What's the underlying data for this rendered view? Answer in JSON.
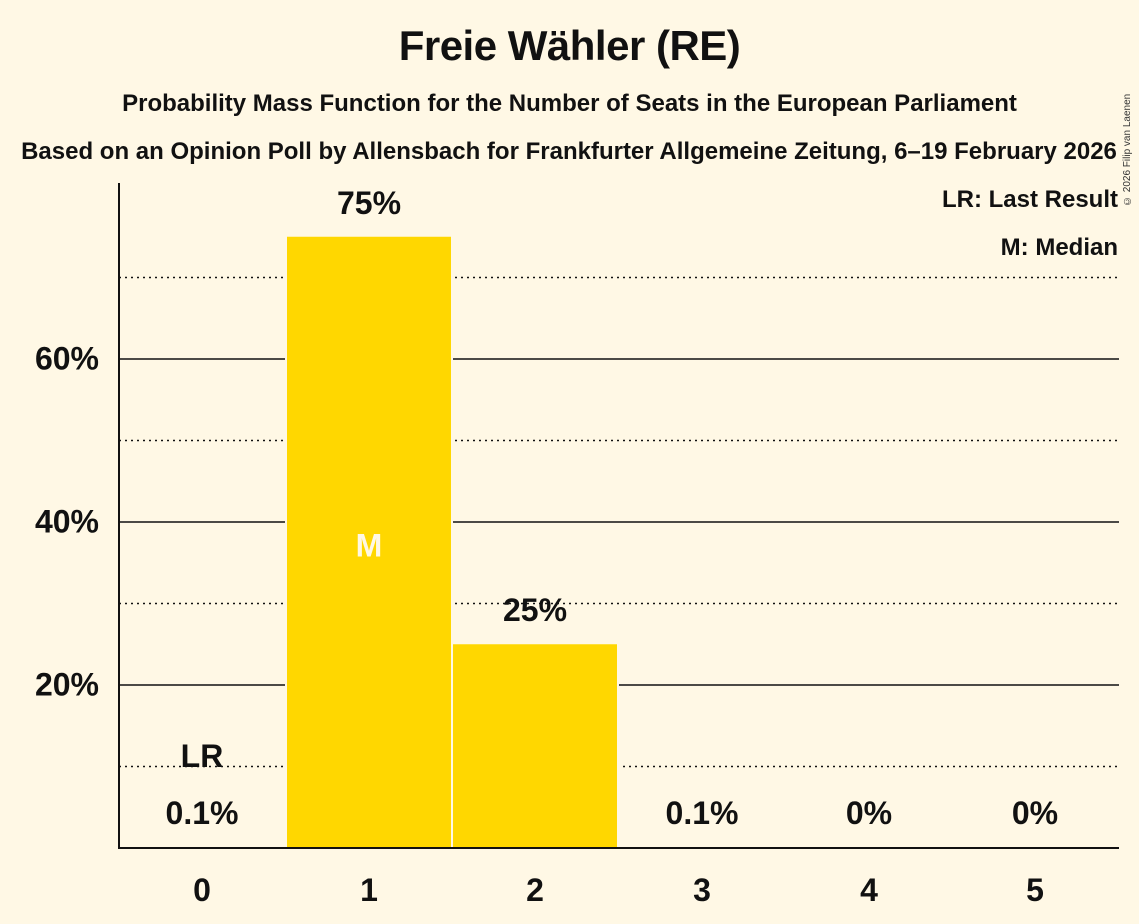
{
  "header": {
    "title": "Freie Wähler (RE)",
    "subtitle": "Probability Mass Function for the Number of Seats in the European Parliament",
    "subtitle2": "Based on an Opinion Poll by Allensbach for Frankfurter Allgemeine Zeitung, 6–19 February 2026",
    "copyright": "© 2026 Filip van Laenen"
  },
  "legend": {
    "lr": "LR: Last Result",
    "m": "M: Median"
  },
  "colors": {
    "bar": "#FFD700",
    "background": "#FFF8E5",
    "text": "#111111"
  },
  "chart_data": {
    "type": "bar",
    "title": "Freie Wähler (RE)",
    "subtitle": "Probability Mass Function for the Number of Seats in the European Parliament",
    "xlabel": "",
    "ylabel": "",
    "categories": [
      "0",
      "1",
      "2",
      "3",
      "4",
      "5"
    ],
    "values": [
      0.1,
      75,
      25,
      0.1,
      0,
      0
    ],
    "value_labels": [
      "0.1%",
      "75%",
      "25%",
      "0.1%",
      "0%",
      "0%"
    ],
    "ylim": [
      0,
      80
    ],
    "yticks": [
      20,
      40,
      60
    ],
    "ytick_labels": [
      "20%",
      "40%",
      "60%"
    ],
    "minor_gridlines": [
      10,
      30,
      50,
      70
    ],
    "grid": true,
    "last_result_category": "0",
    "median_category": "1",
    "annotations": {
      "last_result": "LR",
      "median": "M"
    },
    "legend_position": "top-right"
  }
}
